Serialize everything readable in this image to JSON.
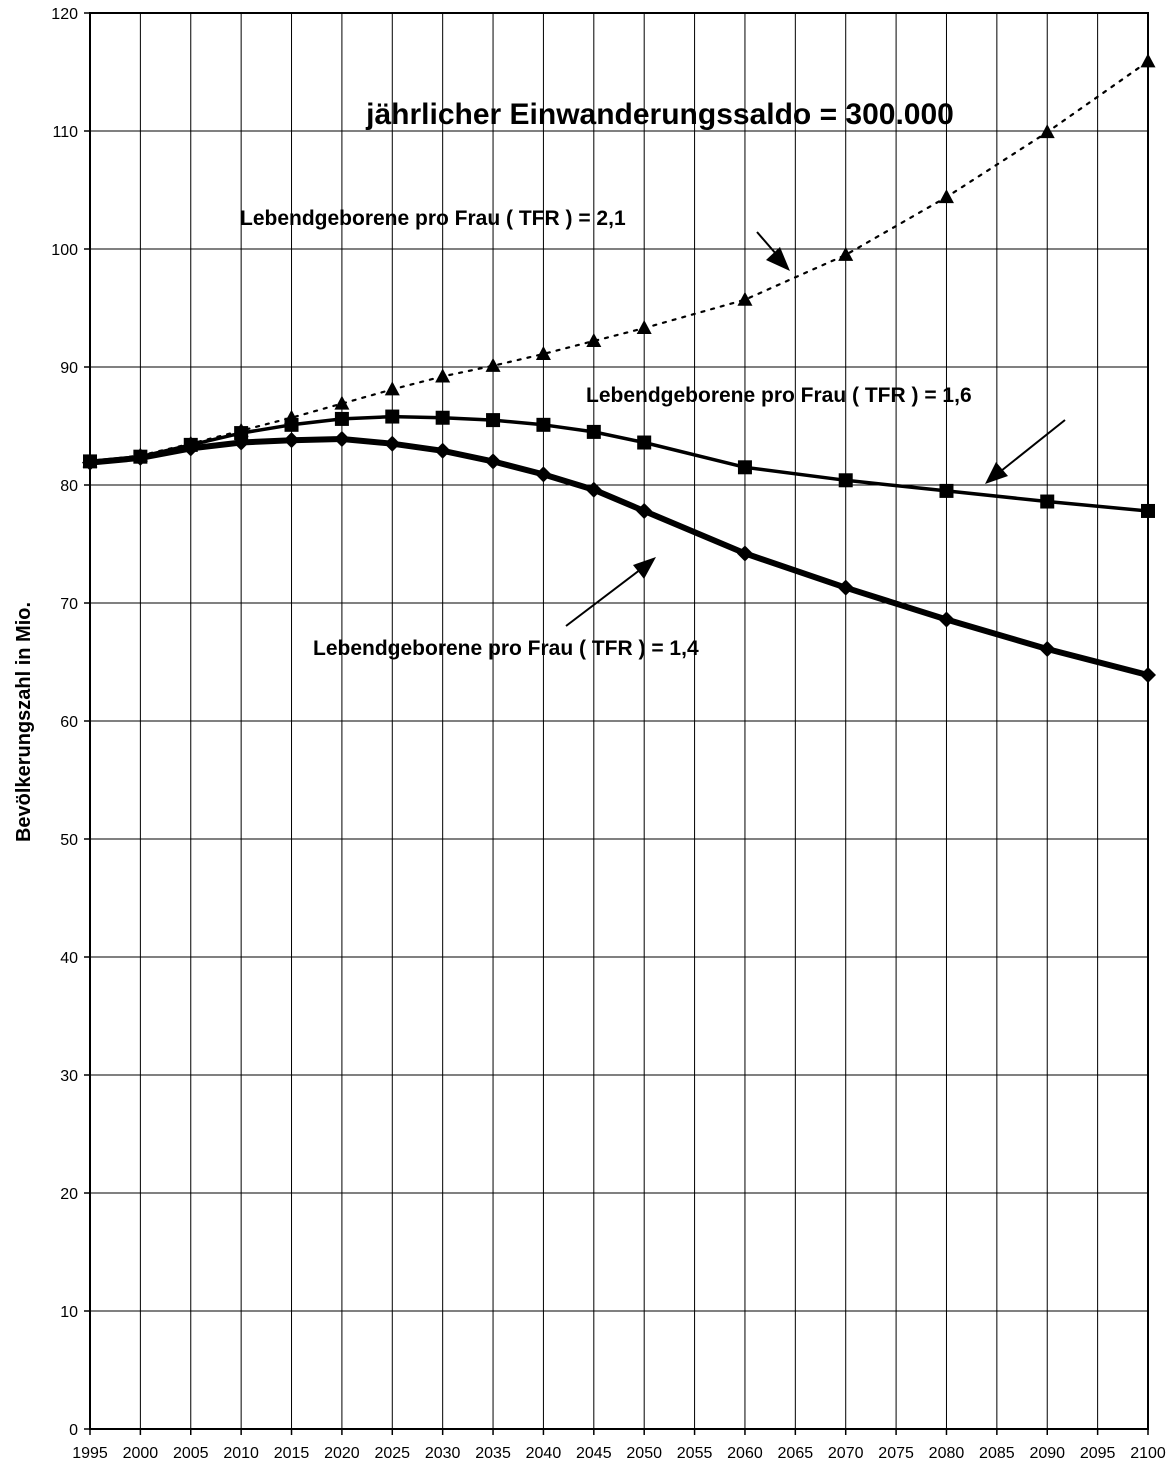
{
  "chart_data": {
    "type": "line",
    "title": "jährlicher Einwanderungssaldo = 300.000",
    "xlabel": "",
    "ylabel": "Bevölkerungszahl in Mio.",
    "ylim": [
      0,
      120
    ],
    "xlim": [
      1995,
      2100
    ],
    "yticks": [
      0,
      10,
      20,
      30,
      40,
      50,
      60,
      70,
      80,
      90,
      100,
      110,
      120
    ],
    "xticks": [
      1995,
      2000,
      2005,
      2010,
      2015,
      2020,
      2025,
      2030,
      2035,
      2040,
      2045,
      2050,
      2055,
      2060,
      2065,
      2070,
      2075,
      2080,
      2085,
      2090,
      2095,
      2100
    ],
    "grid": true,
    "legend": "none",
    "series": [
      {
        "name": "Lebendgeborene pro Frau ( TFR ) = 2,1",
        "marker": "triangle",
        "line": "dotted",
        "points": [
          [
            1995,
            82.0
          ],
          [
            2000,
            82.5
          ],
          [
            2005,
            83.5
          ],
          [
            2010,
            84.6
          ],
          [
            2015,
            85.7
          ],
          [
            2020,
            86.9
          ],
          [
            2025,
            88.1
          ],
          [
            2030,
            89.2
          ],
          [
            2035,
            90.1
          ],
          [
            2040,
            91.1
          ],
          [
            2045,
            92.2
          ],
          [
            2050,
            93.3
          ],
          [
            2060,
            95.7
          ],
          [
            2070,
            99.5
          ],
          [
            2080,
            104.4
          ],
          [
            2090,
            109.9
          ],
          [
            2100,
            115.9
          ]
        ]
      },
      {
        "name": "Lebendgeborene pro Frau ( TFR ) = 1,6",
        "marker": "square",
        "line": "solid",
        "points": [
          [
            1995,
            82.0
          ],
          [
            2000,
            82.4
          ],
          [
            2005,
            83.4
          ],
          [
            2010,
            84.4
          ],
          [
            2015,
            85.1
          ],
          [
            2020,
            85.6
          ],
          [
            2025,
            85.8
          ],
          [
            2030,
            85.7
          ],
          [
            2035,
            85.5
          ],
          [
            2040,
            85.1
          ],
          [
            2045,
            84.5
          ],
          [
            2050,
            83.6
          ],
          [
            2060,
            81.5
          ],
          [
            2070,
            80.4
          ],
          [
            2080,
            79.5
          ],
          [
            2090,
            78.6
          ],
          [
            2100,
            77.8
          ]
        ]
      },
      {
        "name": "Lebendgeborene pro Frau ( TFR ) = 1,4",
        "marker": "diamond",
        "line": "thick",
        "points": [
          [
            1995,
            81.9
          ],
          [
            2000,
            82.3
          ],
          [
            2005,
            83.1
          ],
          [
            2010,
            83.6
          ],
          [
            2015,
            83.8
          ],
          [
            2020,
            83.9
          ],
          [
            2025,
            83.5
          ],
          [
            2030,
            82.9
          ],
          [
            2035,
            82.0
          ],
          [
            2040,
            80.9
          ],
          [
            2045,
            79.6
          ],
          [
            2050,
            77.8
          ],
          [
            2060,
            74.2
          ],
          [
            2070,
            71.3
          ],
          [
            2080,
            68.6
          ],
          [
            2090,
            66.1
          ],
          [
            2100,
            63.9
          ]
        ]
      }
    ],
    "annotations": [
      {
        "text": "Lebendgeborene pro Frau ( TFR ) = 2,1",
        "series": 0
      },
      {
        "text": "Lebendgeborene pro Frau ( TFR ) = 1,6",
        "series": 1
      },
      {
        "text": "Lebendgeborene pro Frau ( TFR ) = 1,4",
        "series": 2
      }
    ]
  }
}
